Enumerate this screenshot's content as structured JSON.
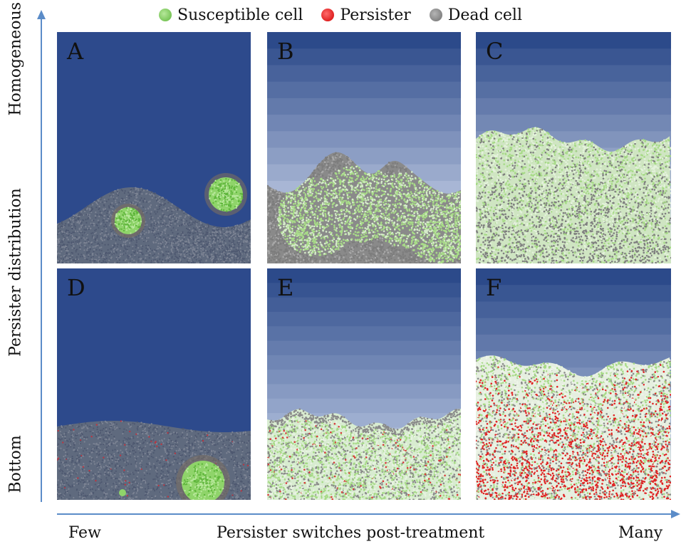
{
  "legend": [
    {
      "label": "Susceptible cell",
      "color": "#7dc95a"
    },
    {
      "label": "Persister",
      "color": "#e51b1b"
    },
    {
      "label": "Dead cell",
      "color": "#8a8a8a"
    }
  ],
  "y_axis": {
    "title": "Persister distribution",
    "top_label": "Homogeneous",
    "bottom_label": "Bottom"
  },
  "x_axis": {
    "title": "Persister switches post-treatment",
    "left_label": "Few",
    "right_label": "Many"
  },
  "panels": [
    {
      "label": "A"
    },
    {
      "label": "B"
    },
    {
      "label": "C"
    },
    {
      "label": "D"
    },
    {
      "label": "E"
    },
    {
      "label": "F"
    }
  ],
  "colors": {
    "axis": "#4a7ab5",
    "dark_blue": "#2c4a8a",
    "light_blue": "#c8d4ec",
    "dead": "#7a7a7a",
    "susceptible": "#8fd46a",
    "susceptible_light": "#d8ecd0",
    "persister": "#e51b1b"
  }
}
